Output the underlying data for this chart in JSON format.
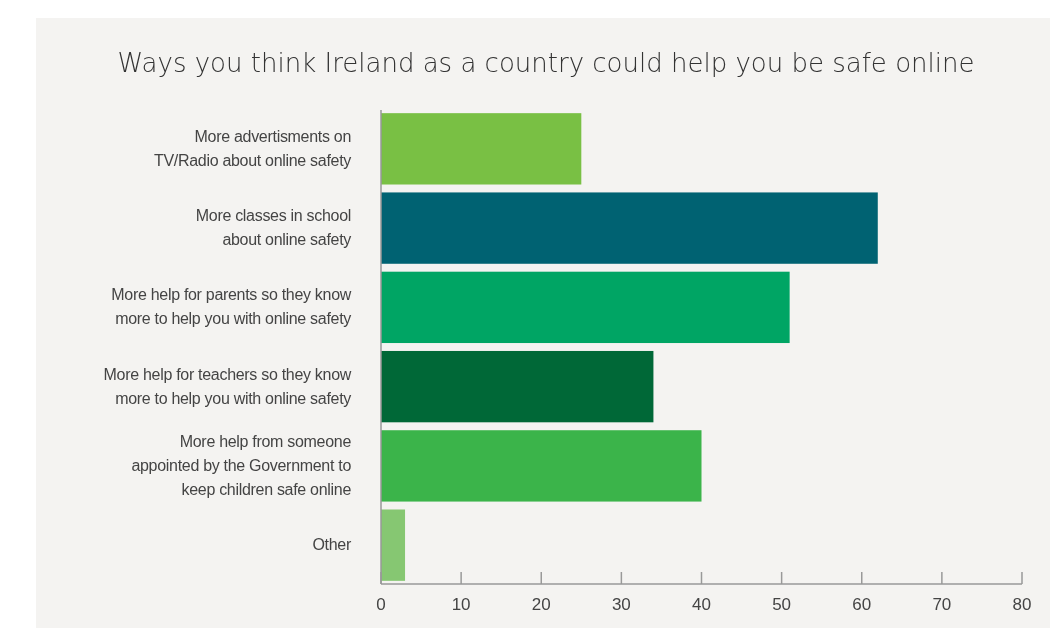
{
  "chart_data": {
    "type": "bar",
    "orientation": "horizontal",
    "title": "Ways you think Ireland as a country could help you be safe online",
    "categories": [
      "More advertisments on\nTV/Radio about online safety",
      "More classes in school\nabout online safety",
      "More help for parents so they know\nmore to help you with online safety",
      "More help for teachers so they know\nmore to help you with online safety",
      "More help from someone\nappointed by the Government to\nkeep children safe online",
      "Other"
    ],
    "values": [
      25,
      62,
      51,
      34,
      40,
      3
    ],
    "colors": [
      "#79c044",
      "#006272",
      "#00a564",
      "#006837",
      "#3bb44a",
      "#86c772"
    ],
    "xlim": [
      0,
      80
    ],
    "xticks": [
      0,
      10,
      20,
      30,
      40,
      50,
      60,
      70,
      80
    ],
    "grid": false
  }
}
